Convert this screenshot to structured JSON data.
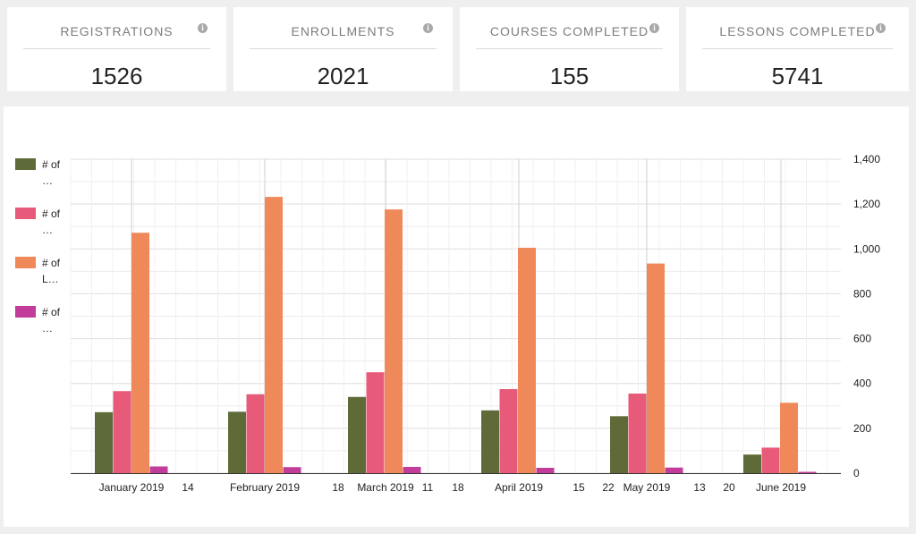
{
  "stats": [
    {
      "title": "REGISTRATIONS",
      "value": "1526"
    },
    {
      "title": "ENROLLMENTS",
      "value": "2021"
    },
    {
      "title": "COURSES COMPLETED",
      "value": "155"
    },
    {
      "title": "LESSONS COMPLETED",
      "value": "5741"
    }
  ],
  "colors": {
    "registrations": "#5e6b38",
    "enrollments": "#e85a7a",
    "lessons": "#f0895a",
    "courses": "#c23d9a",
    "info_icon": "#a9a9a9"
  },
  "legend": {
    "items": [
      {
        "label": "# of …",
        "color": "#5e6b38"
      },
      {
        "label": "# of …",
        "color": "#e85a7a"
      },
      {
        "label": "# of L…",
        "color": "#f0895a"
      },
      {
        "label": "# of …",
        "color": "#c23d9a"
      }
    ]
  },
  "chart_data": {
    "type": "bar",
    "categories": [
      "January 2019",
      "February 2019",
      "March 2019",
      "April 2019",
      "May 2019",
      "June 2019"
    ],
    "series": [
      {
        "color": "#5e6b38",
        "values": [
          272,
          274,
          340,
          280,
          254,
          83
        ]
      },
      {
        "color": "#e85a7a",
        "values": [
          366,
          352,
          450,
          375,
          355,
          114
        ]
      },
      {
        "color": "#f0895a",
        "values": [
          1072,
          1232,
          1176,
          1005,
          935,
          314
        ]
      },
      {
        "color": "#c23d9a",
        "values": [
          30,
          27,
          28,
          24,
          25,
          6
        ]
      }
    ],
    "x_tick_labels": [
      "January 2019",
      "14",
      "February 2019",
      "18",
      "March 2019",
      "11",
      "18",
      "April 2019",
      "15",
      "22",
      "May 2019",
      "13",
      "20",
      "June 2019"
    ],
    "y_tick_labels": [
      "0",
      "200",
      "400",
      "600",
      "800",
      "1,000",
      "1,200",
      "1,400"
    ],
    "ylim": [
      0,
      1400
    ],
    "y_axis_side": "right",
    "grid": true,
    "legend_position": "left"
  }
}
